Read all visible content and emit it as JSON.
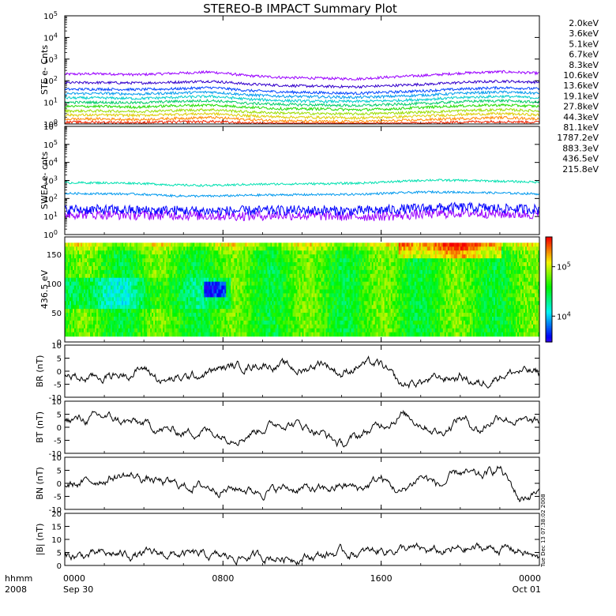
{
  "title": "STEREO-B IMPACT Summary Plot",
  "chart_data": [
    {
      "type": "line",
      "ylabel": "STE e- Cnts",
      "yscale": "log",
      "ylim": [
        1,
        100000
      ],
      "yticks": [
        "10^0",
        "10^1",
        "10^2",
        "10^3",
        "10^4",
        "10^5"
      ],
      "legend_position": "right",
      "series": [
        {
          "name": "2.0keV",
          "color": "#9a00ff",
          "values": [
            200,
            210,
            190,
            220,
            250,
            170,
            140,
            130,
            120,
            150,
            180,
            230,
            260,
            220
          ]
        },
        {
          "name": "3.6keV",
          "color": "#3300cc",
          "values": [
            80,
            82,
            78,
            85,
            95,
            70,
            60,
            55,
            52,
            60,
            70,
            85,
            95,
            85
          ]
        },
        {
          "name": "5.1keV",
          "color": "#0044ff",
          "values": [
            40,
            41,
            39,
            42,
            48,
            35,
            30,
            28,
            26,
            30,
            35,
            42,
            48,
            42
          ]
        },
        {
          "name": "6.7keV",
          "color": "#0099ee",
          "values": [
            25,
            26,
            24,
            27,
            30,
            22,
            19,
            18,
            17,
            19,
            22,
            27,
            30,
            26
          ]
        },
        {
          "name": "8.3keV",
          "color": "#00cccc",
          "values": [
            16,
            16,
            15,
            17,
            19,
            14,
            12,
            11,
            11,
            12,
            14,
            17,
            19,
            16
          ]
        },
        {
          "name": "10.6keV",
          "color": "#00cc66",
          "values": [
            10,
            10,
            9.5,
            11,
            12,
            9,
            8,
            7.5,
            7,
            8,
            9,
            11,
            12,
            10
          ]
        },
        {
          "name": "13.6keV",
          "color": "#22dd00",
          "values": [
            6.5,
            6.5,
            6,
            7,
            7.5,
            6,
            5,
            5,
            4.5,
            5,
            6,
            7,
            7.5,
            6.5
          ]
        },
        {
          "name": "19.1keV",
          "color": "#99dd00",
          "values": [
            4,
            4,
            3.8,
            4.2,
            4.6,
            3.6,
            3.2,
            3,
            2.9,
            3.2,
            3.6,
            4.2,
            4.6,
            4
          ]
        },
        {
          "name": "27.8keV",
          "color": "#ddcc00",
          "values": [
            2.6,
            2.6,
            2.5,
            2.8,
            3,
            2.4,
            2.1,
            2,
            1.9,
            2.1,
            2.4,
            2.8,
            3,
            2.6
          ]
        },
        {
          "name": "44.3keV",
          "color": "#ff8800",
          "values": [
            1.7,
            1.7,
            1.6,
            1.8,
            2,
            1.6,
            1.4,
            1.3,
            1.3,
            1.4,
            1.6,
            1.8,
            2,
            1.7
          ]
        },
        {
          "name": "81.1keV",
          "color": "#ee2200",
          "values": [
            1.2,
            1.2,
            1.15,
            1.25,
            1.3,
            1.1,
            1.05,
            1.02,
            1.0,
            1.05,
            1.1,
            1.25,
            1.3,
            1.2
          ]
        }
      ]
    },
    {
      "type": "line",
      "ylabel": "SWEA e- cnts",
      "yscale": "log",
      "ylim": [
        1,
        1000000
      ],
      "yticks": [
        "10^0",
        "10^1",
        "10^2",
        "10^3",
        "10^4",
        "10^5",
        "10^6"
      ],
      "legend_position": "right",
      "series": [
        {
          "name": "1787.2eV",
          "color": "#9a00ff",
          "values": [
            14,
            13,
            12,
            12,
            11,
            11,
            12,
            11,
            10,
            11,
            14,
            16,
            14,
            13
          ]
        },
        {
          "name": "883.3eV",
          "color": "#0000ff",
          "values": [
            25,
            24,
            22,
            22,
            20,
            21,
            22,
            22,
            20,
            24,
            30,
            32,
            28,
            25
          ]
        },
        {
          "name": "436.5eV",
          "color": "#0099ee",
          "values": [
            190,
            185,
            175,
            140,
            135,
            150,
            160,
            165,
            170,
            200,
            230,
            220,
            200,
            180
          ]
        },
        {
          "name": "215.8eV",
          "color": "#00e0b0",
          "values": [
            750,
            740,
            700,
            560,
            520,
            600,
            640,
            660,
            700,
            850,
            1050,
            1000,
            900,
            800
          ]
        }
      ]
    },
    {
      "type": "heatmap",
      "ylabel": "436.5 eV",
      "ylim": [
        0,
        180
      ],
      "yticks": [
        "0",
        "50",
        "100",
        "150"
      ],
      "colorbar": {
        "scale": "log",
        "range": [
          3000,
          400000
        ],
        "ticks": [
          "10^4",
          "10^5"
        ]
      }
    },
    {
      "type": "line",
      "ylabel": "BR (nT)",
      "ylim": [
        -10,
        10
      ],
      "yticks": [
        "-10",
        "-5",
        "0",
        "5",
        "10"
      ],
      "series": [
        {
          "values": [
            -2,
            -3,
            -2,
            -1,
            1,
            -4,
            -3,
            -1,
            1,
            2,
            3,
            2,
            0,
            4,
            -1,
            3,
            2,
            -6,
            -4,
            -3,
            -2,
            -5,
            -1,
            0,
            -1
          ]
        }
      ]
    },
    {
      "type": "line",
      "ylabel": "BT (nT)",
      "ylim": [
        -10,
        10
      ],
      "yticks": [
        "-10",
        "-5",
        "0",
        "5",
        "10"
      ],
      "series": [
        {
          "values": [
            3,
            3,
            4,
            2,
            1,
            -1,
            -2,
            -1,
            -3,
            -3,
            0,
            2,
            1,
            -2,
            -7,
            -3,
            1,
            5,
            2,
            -2,
            4,
            -1,
            5,
            2,
            1
          ]
        }
      ]
    },
    {
      "type": "line",
      "ylabel": "BN (nT)",
      "ylim": [
        -10,
        10
      ],
      "yticks": [
        "-10",
        "-5",
        "0",
        "5",
        "10"
      ],
      "series": [
        {
          "values": [
            -1,
            0,
            2,
            3,
            2,
            0,
            -1,
            -1,
            -2,
            -2,
            -3,
            -2,
            -2,
            -3,
            -1,
            -2,
            2,
            -4,
            3,
            -1,
            4,
            2,
            6,
            -6,
            -3
          ]
        }
      ]
    },
    {
      "type": "line",
      "ylabel": "|B| (nT)",
      "ylim": [
        0,
        20
      ],
      "yticks": [
        "0",
        "5",
        "10",
        "15",
        "20"
      ],
      "series": [
        {
          "values": [
            3.5,
            3.8,
            4,
            4.2,
            4,
            4.5,
            4,
            3.5,
            3,
            3.2,
            3.5,
            3,
            3.5,
            4,
            5,
            4.5,
            6,
            6.5,
            5.5,
            5,
            6,
            6.5,
            6.5,
            6,
            2
          ]
        }
      ]
    }
  ],
  "xaxis": {
    "ticks": [
      "0000",
      "0800",
      "1600",
      "0000"
    ],
    "tick_hours": [
      0,
      8,
      16,
      24
    ],
    "sublabels": [
      "Sep 30",
      "Oct 01"
    ],
    "left_labels": [
      "hhmm",
      "2008"
    ]
  },
  "timestamp": "Tue Dec 13 07:38:02 2008"
}
